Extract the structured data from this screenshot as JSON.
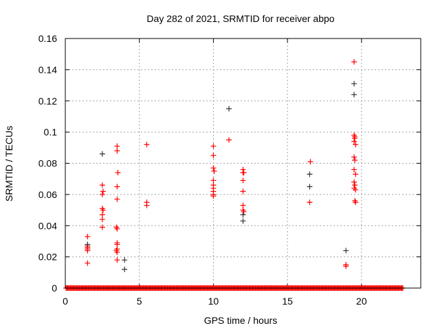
{
  "chart_data": {
    "type": "scatter",
    "title": "Day 282 of 2021, SRMTID for receiver abpo",
    "xlabel": "GPS time / hours",
    "ylabel": "SRMTID / TECUs",
    "xlim": [
      0,
      24
    ],
    "ylim": [
      0,
      0.16
    ],
    "xticks": [
      0,
      5,
      10,
      15,
      20
    ],
    "xtick_labels": [
      "0",
      "5",
      "10",
      "15",
      "20"
    ],
    "yticks": [
      0,
      0.02,
      0.04,
      0.06,
      0.08,
      0.1,
      0.12,
      0.14,
      0.16
    ],
    "ytick_labels": [
      "0",
      "0.02",
      "0.04",
      "0.06",
      "0.08",
      "0.1",
      "0.12",
      "0.14",
      "0.16"
    ],
    "grid": true,
    "legend": "none",
    "series": [
      {
        "name": "red",
        "color": "#ff0000",
        "points": [
          [
            1.5,
            0.033
          ],
          [
            1.5,
            0.027
          ],
          [
            1.5,
            0.026
          ],
          [
            1.5,
            0.025
          ],
          [
            1.5,
            0.024
          ],
          [
            1.5,
            0.016
          ],
          [
            2.5,
            0.066
          ],
          [
            2.55,
            0.062
          ],
          [
            2.5,
            0.06
          ],
          [
            2.5,
            0.051
          ],
          [
            2.55,
            0.05
          ],
          [
            2.5,
            0.047
          ],
          [
            2.5,
            0.044
          ],
          [
            2.5,
            0.039
          ],
          [
            3.5,
            0.091
          ],
          [
            3.5,
            0.088
          ],
          [
            3.55,
            0.074
          ],
          [
            3.5,
            0.065
          ],
          [
            3.5,
            0.057
          ],
          [
            3.45,
            0.039
          ],
          [
            3.5,
            0.038
          ],
          [
            3.5,
            0.029
          ],
          [
            3.5,
            0.028
          ],
          [
            3.5,
            0.025
          ],
          [
            3.45,
            0.024
          ],
          [
            3.5,
            0.023
          ],
          [
            3.5,
            0.018
          ],
          [
            5.5,
            0.092
          ],
          [
            5.5,
            0.055
          ],
          [
            5.5,
            0.053
          ],
          [
            10.0,
            0.091
          ],
          [
            10.0,
            0.085
          ],
          [
            10.0,
            0.077
          ],
          [
            10.05,
            0.075
          ],
          [
            10.0,
            0.069
          ],
          [
            10.0,
            0.066
          ],
          [
            10.0,
            0.064
          ],
          [
            10.0,
            0.062
          ],
          [
            10.0,
            0.06
          ],
          [
            10.0,
            0.059
          ],
          [
            11.05,
            0.095
          ],
          [
            12.0,
            0.076
          ],
          [
            12.0,
            0.074
          ],
          [
            12.05,
            0.074
          ],
          [
            12.0,
            0.069
          ],
          [
            12.0,
            0.062
          ],
          [
            12.0,
            0.053
          ],
          [
            12.0,
            0.05
          ],
          [
            12.05,
            0.049
          ],
          [
            16.55,
            0.081
          ],
          [
            16.5,
            0.055
          ],
          [
            18.95,
            0.015
          ],
          [
            18.95,
            0.014
          ],
          [
            19.5,
            0.145
          ],
          [
            19.5,
            0.098
          ],
          [
            19.55,
            0.097
          ],
          [
            19.55,
            0.096
          ],
          [
            19.5,
            0.094
          ],
          [
            19.6,
            0.092
          ],
          [
            19.5,
            0.084
          ],
          [
            19.55,
            0.082
          ],
          [
            19.5,
            0.076
          ],
          [
            19.6,
            0.073
          ],
          [
            19.5,
            0.068
          ],
          [
            19.55,
            0.066
          ],
          [
            19.5,
            0.064
          ],
          [
            19.6,
            0.063
          ],
          [
            19.55,
            0.056
          ],
          [
            19.6,
            0.055
          ]
        ],
        "baseline_zero_points": {
          "start": 0.05,
          "end": 22.8,
          "step": 0.06,
          "value": 0
        }
      },
      {
        "name": "black",
        "color": "#333333",
        "points": [
          [
            1.5,
            0.028
          ],
          [
            2.5,
            0.086
          ],
          [
            4.0,
            0.018
          ],
          [
            4.0,
            0.012
          ],
          [
            11.05,
            0.115
          ],
          [
            12.0,
            0.047
          ],
          [
            12.0,
            0.043
          ],
          [
            16.5,
            0.073
          ],
          [
            16.5,
            0.065
          ],
          [
            18.95,
            0.024
          ],
          [
            19.5,
            0.131
          ],
          [
            19.5,
            0.124
          ]
        ]
      }
    ]
  }
}
